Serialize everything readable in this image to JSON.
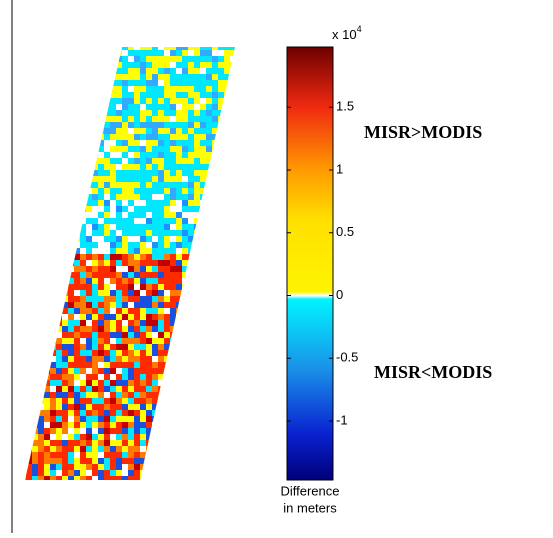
{
  "chart_data": {
    "type": "colorbar-map",
    "annotations": [
      "MISR>MODIS",
      "MISR<MODIS"
    ],
    "colorbar": {
      "clim": [
        -1.47,
        1.98
      ],
      "ticks": [
        -1,
        -0.5,
        0,
        0.5,
        1,
        1.5
      ],
      "multiplier_base": "x 10",
      "multiplier_exponent": "4",
      "label": [
        "Difference",
        "in meters"
      ],
      "colormap": [
        {
          "value": -1.47,
          "color": "#00007a"
        },
        {
          "value": -1.1,
          "color": "#0a22d0"
        },
        {
          "value": -0.6,
          "color": "#1a8ee8"
        },
        {
          "value": -0.03,
          "color": "#00f4ff"
        },
        {
          "value": 0,
          "color": "#ffffff"
        },
        {
          "value": 0.03,
          "color": "#fff400"
        },
        {
          "value": 0.6,
          "color": "#ffe000"
        },
        {
          "value": 1.0,
          "color": "#ff9a00"
        },
        {
          "value": 1.5,
          "color": "#f02a10"
        },
        {
          "value": 1.98,
          "color": "#6e0000"
        }
      ]
    }
  }
}
